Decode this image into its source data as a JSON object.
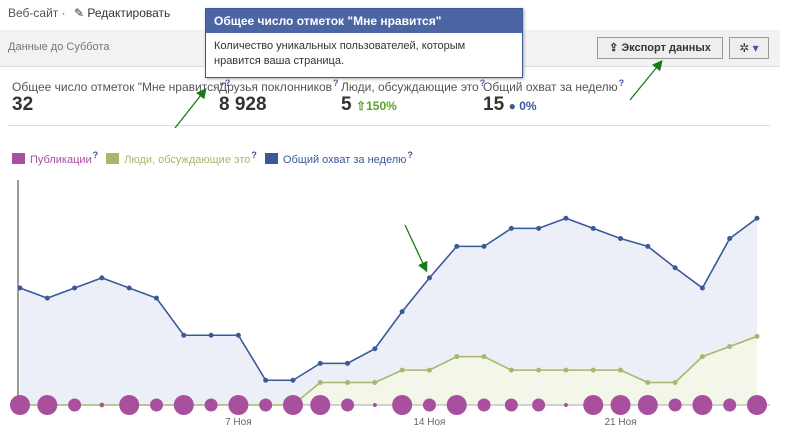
{
  "header": {
    "site": "Веб-сайт",
    "edit": "Редактировать",
    "date_range": "Данные до Суббота",
    "export": "Экспорт данных"
  },
  "tooltip": {
    "title": "Общее число отметок \"Мне нравится\"",
    "text": "Количество уникальных пользователей, которым нравится ваша страница."
  },
  "help": "?",
  "stats": [
    {
      "label": "Общее число отметок \"Мне нравится\"",
      "value": "32"
    },
    {
      "label": "Друзья поклонников",
      "value": "8 928"
    },
    {
      "label": "Люди, обсуждающие это",
      "value": "5",
      "change": "150%"
    },
    {
      "label": "Общий охват за неделю",
      "value": "15",
      "change": "0%"
    }
  ],
  "chart_data": {
    "type": "line",
    "categories": [
      null,
      null,
      null,
      null,
      null,
      null,
      null,
      null,
      "7 Ноя",
      null,
      null,
      null,
      null,
      null,
      null,
      "14 Ноя",
      null,
      null,
      null,
      null,
      null,
      null,
      "21 Ноя",
      null,
      null,
      null,
      null,
      null
    ],
    "ylim": [
      0,
      20
    ],
    "series": [
      {
        "name": "Публикации",
        "color": "#a8509e",
        "style": "bubbles",
        "values": [
          2,
          2,
          1,
          0,
          2,
          1,
          2,
          1,
          2,
          1,
          2,
          2,
          1,
          0,
          2,
          1,
          2,
          1,
          1,
          1,
          0,
          2,
          2,
          2,
          1,
          2,
          1,
          2
        ]
      },
      {
        "name": "Люди, обсуждающие это",
        "color": "#a5b86b",
        "values": [
          0,
          0,
          0,
          0,
          0,
          0,
          0,
          0,
          0,
          0,
          0,
          2.0,
          2.0,
          2.0,
          3.1,
          3.1,
          4.3,
          4.3,
          3.1,
          3.1,
          3.1,
          3.1,
          3.1,
          2.0,
          2.0,
          4.3,
          5.2,
          6.1
        ]
      },
      {
        "name": "Общий охват за неделю",
        "color": "#3b5998",
        "values": [
          10.4,
          9.5,
          10.4,
          11.3,
          10.4,
          9.5,
          6.2,
          6.2,
          6.2,
          2.2,
          2.2,
          3.7,
          3.7,
          5.0,
          8.3,
          11.3,
          14.1,
          14.1,
          15.7,
          15.7,
          16.6,
          15.7,
          14.8,
          14.1,
          12.2,
          10.4,
          14.8,
          16.6
        ]
      }
    ]
  }
}
